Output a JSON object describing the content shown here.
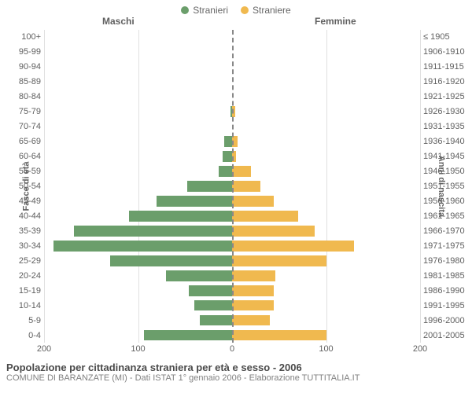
{
  "legend": {
    "male": "Stranieri",
    "female": "Straniere",
    "male_color": "#6b9e6b",
    "female_color": "#f0b94f"
  },
  "headers": {
    "male": "Maschi",
    "female": "Femmine"
  },
  "axis_titles": {
    "left": "Fasce di età",
    "right": "Anni di nascita"
  },
  "chart": {
    "type": "population-pyramid",
    "x_max": 200,
    "x_ticks": [
      200,
      100,
      0,
      100,
      200
    ],
    "grid_color": "#e0e0e0",
    "axis_line_color": "#888888",
    "background": "#ffffff",
    "rows": [
      {
        "age": "100+",
        "birth": "≤ 1905",
        "m": 0,
        "f": 0
      },
      {
        "age": "95-99",
        "birth": "1906-1910",
        "m": 0,
        "f": 0
      },
      {
        "age": "90-94",
        "birth": "1911-1915",
        "m": 0,
        "f": 0
      },
      {
        "age": "85-89",
        "birth": "1916-1920",
        "m": 0,
        "f": 0
      },
      {
        "age": "80-84",
        "birth": "1921-1925",
        "m": 0,
        "f": 0
      },
      {
        "age": "75-79",
        "birth": "1926-1930",
        "m": 2,
        "f": 3
      },
      {
        "age": "70-74",
        "birth": "1931-1935",
        "m": 0,
        "f": 0
      },
      {
        "age": "65-69",
        "birth": "1936-1940",
        "m": 8,
        "f": 6
      },
      {
        "age": "60-64",
        "birth": "1941-1945",
        "m": 10,
        "f": 4
      },
      {
        "age": "55-59",
        "birth": "1946-1950",
        "m": 14,
        "f": 20
      },
      {
        "age": "50-54",
        "birth": "1951-1955",
        "m": 48,
        "f": 30
      },
      {
        "age": "45-49",
        "birth": "1956-1960",
        "m": 80,
        "f": 44
      },
      {
        "age": "40-44",
        "birth": "1961-1965",
        "m": 110,
        "f": 70
      },
      {
        "age": "35-39",
        "birth": "1966-1970",
        "m": 168,
        "f": 88
      },
      {
        "age": "30-34",
        "birth": "1971-1975",
        "m": 190,
        "f": 130
      },
      {
        "age": "25-29",
        "birth": "1976-1980",
        "m": 130,
        "f": 100
      },
      {
        "age": "20-24",
        "birth": "1981-1985",
        "m": 70,
        "f": 46
      },
      {
        "age": "15-19",
        "birth": "1986-1990",
        "m": 46,
        "f": 44
      },
      {
        "age": "10-14",
        "birth": "1991-1995",
        "m": 40,
        "f": 44
      },
      {
        "age": "5-9",
        "birth": "1996-2000",
        "m": 34,
        "f": 40
      },
      {
        "age": "0-4",
        "birth": "2001-2005",
        "m": 94,
        "f": 100
      }
    ]
  },
  "footer": {
    "title": "Popolazione per cittadinanza straniera per età e sesso - 2006",
    "subtitle": "COMUNE DI BARANZATE (MI) - Dati ISTAT 1° gennaio 2006 - Elaborazione TUTTITALIA.IT"
  }
}
